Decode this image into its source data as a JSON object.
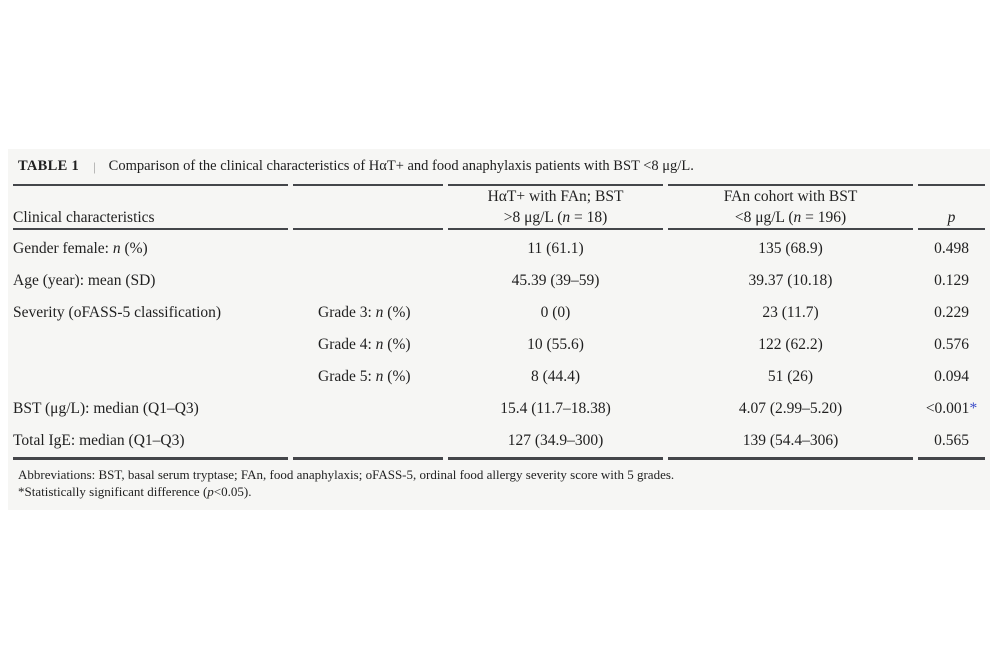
{
  "figure": {
    "background": "#f6f6f4",
    "rule_color": "#44464a",
    "significance_color": "#3b4cc8",
    "caption": {
      "label": "TABLE 1",
      "separator": "|",
      "text": "Comparison of the clinical characteristics of HαT+ and food anaphylaxis patients with BST <8 μg/L."
    },
    "table": {
      "header": {
        "col1": "Clinical characteristics",
        "col2": "",
        "col3_html": "HαT+ with FAn; BST<br>&gt;8 μg/L (<i>n</i> = 18)",
        "col4_html": "FAn cohort with BST<br>&lt;8 μg/L (<i>n</i> = 196)",
        "col5_html": "<i>p</i>"
      },
      "rows": [
        {
          "label_html": "Gender female: <i>n</i> (%)",
          "sub_html": "",
          "hat_value": "11 (61.1)",
          "fan_value": "135 (68.9)",
          "p_html": "0.498"
        },
        {
          "label_html": "Age (year): mean (SD)",
          "sub_html": "",
          "hat_value": "45.39 (39–59)",
          "fan_value": "39.37 (10.18)",
          "p_html": "0.129"
        },
        {
          "label_html": "Severity (oFASS-5 classification)",
          "sub_html": "Grade 3: <i>n</i> (%)",
          "hat_value": "0 (0)",
          "fan_value": "23 (11.7)",
          "p_html": "0.229"
        },
        {
          "label_html": "",
          "sub_html": "Grade 4: <i>n</i> (%)",
          "hat_value": "10 (55.6)",
          "fan_value": "122 (62.2)",
          "p_html": "0.576"
        },
        {
          "label_html": "",
          "sub_html": "Grade 5: <i>n</i> (%)",
          "hat_value": "8 (44.4)",
          "fan_value": "51 (26)",
          "p_html": "0.094"
        },
        {
          "label_html": "BST (μg/L): median (Q1–Q3)",
          "sub_html": "",
          "hat_value": "15.4 (11.7–18.38)",
          "fan_value": "4.07 (2.99–5.20)",
          "p_html": "&lt;0.001<span class='sig'>*</span>"
        },
        {
          "label_html": "Total IgE: median (Q1–Q3)",
          "sub_html": "",
          "hat_value": "127 (34.9–300)",
          "fan_value": "139 (54.4–306)",
          "p_html": "0.565"
        }
      ]
    },
    "footnotes": {
      "abbreviations_html": "Abbreviations: BST, basal serum tryptase; FAn, food anaphylaxis; oFASS-5, ordinal food allergy severity score with 5 grades.",
      "significance_html": "*Statistically significant difference (<i>p</i>&lt;0.05)."
    }
  },
  "chart_data": {
    "type": "table",
    "title": "TABLE 1 | Comparison of the clinical characteristics of HαT+ and food anaphylaxis patients with BST <8 μg/L.",
    "columns": [
      "Clinical characteristics",
      "",
      "HαT+ with FAn; BST >8 μg/L (n = 18)",
      "FAn cohort with BST <8 μg/L (n = 196)",
      "p"
    ],
    "rows": [
      [
        "Gender female: n (%)",
        "",
        "11 (61.1)",
        "135 (68.9)",
        "0.498"
      ],
      [
        "Age (year): mean (SD)",
        "",
        "45.39 (39–59)",
        "39.37 (10.18)",
        "0.129"
      ],
      [
        "Severity (oFASS-5 classification)",
        "Grade 3: n (%)",
        "0 (0)",
        "23 (11.7)",
        "0.229"
      ],
      [
        "",
        "Grade 4: n (%)",
        "10 (55.6)",
        "122 (62.2)",
        "0.576"
      ],
      [
        "",
        "Grade 5: n (%)",
        "8 (44.4)",
        "51 (26)",
        "0.094"
      ],
      [
        "BST (μg/L): median (Q1–Q3)",
        "",
        "15.4 (11.7–18.38)",
        "4.07 (2.99–5.20)",
        "<0.001*"
      ],
      [
        "Total IgE: median (Q1–Q3)",
        "",
        "127 (34.9–300)",
        "139 (54.4–306)",
        "0.565"
      ]
    ],
    "footnotes": [
      "Abbreviations: BST, basal serum tryptase; FAn, food anaphylaxis; oFASS-5, ordinal food allergy severity score with 5 grades.",
      "*Statistically significant difference (p<0.05)."
    ]
  }
}
